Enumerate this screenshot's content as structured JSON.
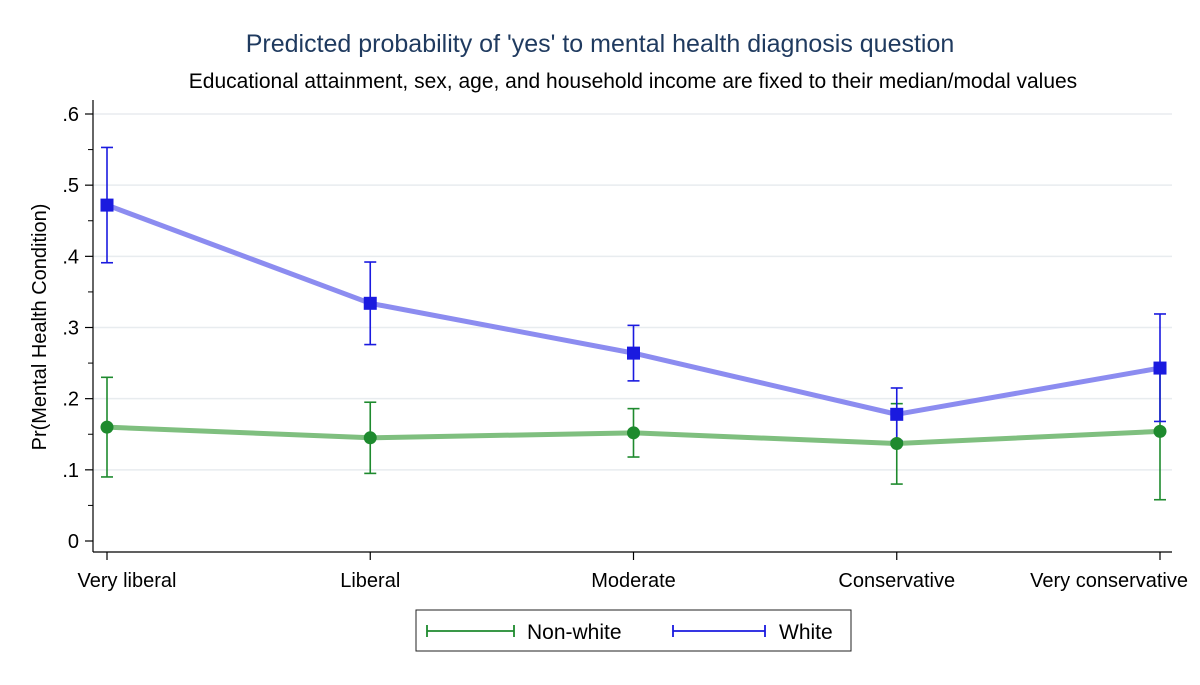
{
  "chart_data": {
    "type": "line",
    "title": "Predicted probability of 'yes' to mental health diagnosis question",
    "subtitle": "Educational attainment, sex, age, and household income are fixed to their median/modal values",
    "xlabel": "",
    "ylabel": "Pr(Mental Health Condition)",
    "categories": [
      "Very liberal",
      "Liberal",
      "Moderate",
      "Conservative",
      "Very conservative"
    ],
    "yticks": [
      0,
      0.1,
      0.2,
      0.3,
      0.4,
      0.5,
      0.6
    ],
    "ytick_labels": [
      "0",
      ".1",
      ".2",
      ".3",
      ".4",
      ".5",
      ".6"
    ],
    "ylim": [
      0,
      0.6
    ],
    "grid": true,
    "legend_position": "bottom",
    "series": [
      {
        "name": "Non-white",
        "values": [
          0.16,
          0.145,
          0.152,
          0.137,
          0.154
        ],
        "ci_low": [
          0.09,
          0.095,
          0.118,
          0.08,
          0.058
        ],
        "ci_high": [
          0.23,
          0.195,
          0.186,
          0.193,
          0.25
        ],
        "line_color": "#7fbf7f",
        "marker_color": "#1e8a2e",
        "marker": "circle"
      },
      {
        "name": "White",
        "values": [
          0.472,
          0.334,
          0.264,
          0.178,
          0.243
        ],
        "ci_low": [
          0.391,
          0.276,
          0.225,
          0.141,
          0.168
        ],
        "ci_high": [
          0.553,
          0.392,
          0.303,
          0.215,
          0.319
        ],
        "line_color": "#8c8cf0",
        "marker_color": "#1a1adf",
        "marker": "square"
      }
    ]
  }
}
